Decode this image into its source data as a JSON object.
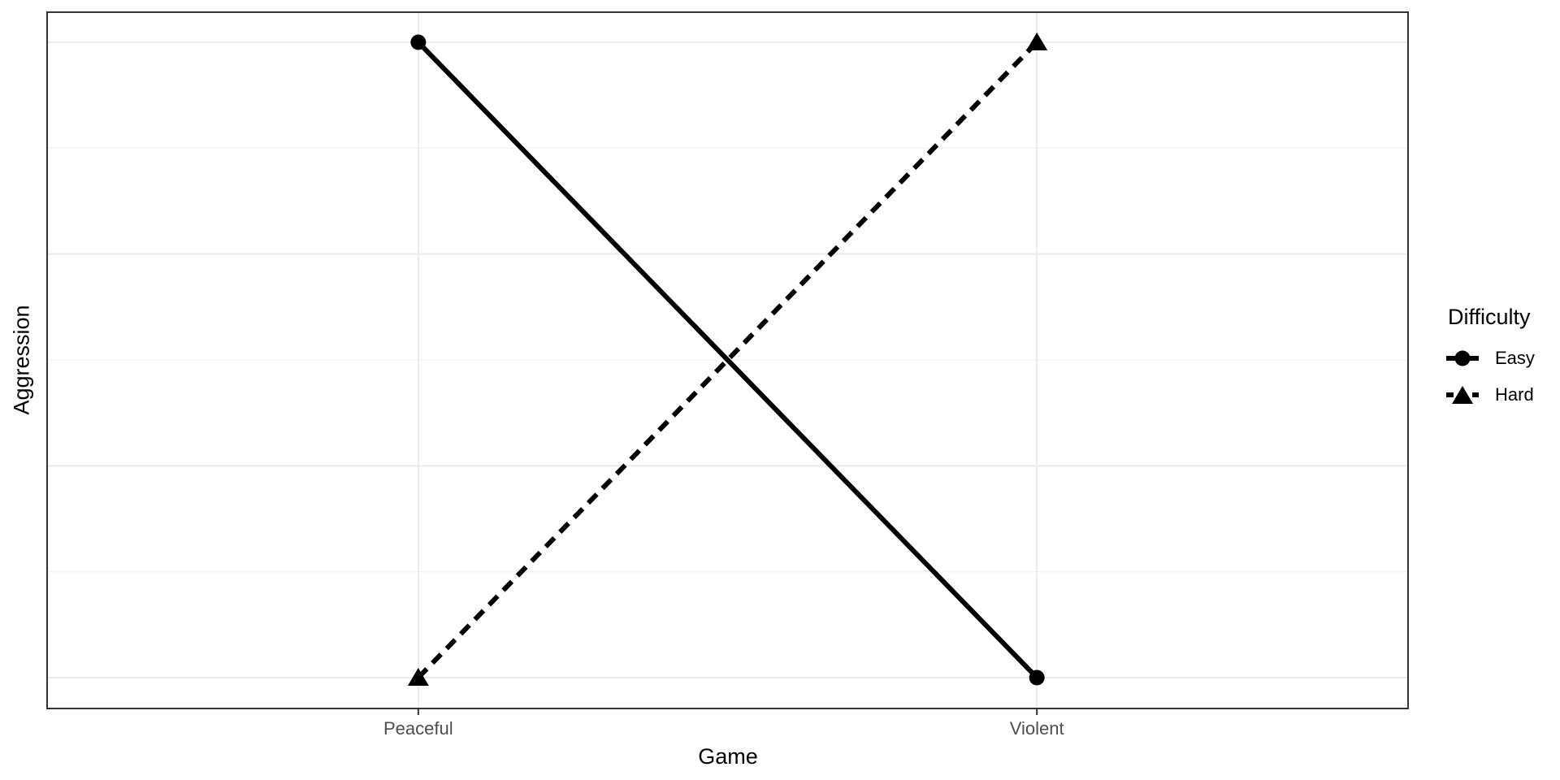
{
  "figure": {
    "background": "#FFFFFF"
  },
  "chart_data": {
    "type": "line",
    "title": "",
    "xlabel": "Game",
    "ylabel": "Aggression",
    "categories": [
      "Peaceful",
      "Violent"
    ],
    "series": [
      {
        "name": "Easy",
        "values": [
          1,
          0
        ],
        "line_style": "solid",
        "marker": "circle"
      },
      {
        "name": "Hard",
        "values": [
          0,
          1
        ],
        "line_style": "dashed",
        "marker": "triangle"
      }
    ],
    "y_axis": {
      "tick_labels_shown": false,
      "units": "unlabeled",
      "range_normalized": [
        0,
        1
      ],
      "gridline_count": 7
    },
    "x_axis": {
      "tick_labels_shown": true
    },
    "legend": {
      "title": "Difficulty",
      "position": "right",
      "entries": [
        "Easy",
        "Hard"
      ]
    },
    "layout_hints": {
      "grid": "horizontal major/minor + vertical at categories",
      "panel_border": true,
      "theme": "white background, light gray grid"
    },
    "colors": {
      "series": "#000000",
      "grid_major": "#EBEBEB",
      "grid_minor": "#F2F2F2",
      "panel_border": "#333333",
      "tick_label": "#4D4D4D",
      "axis_title": "#000000"
    }
  }
}
